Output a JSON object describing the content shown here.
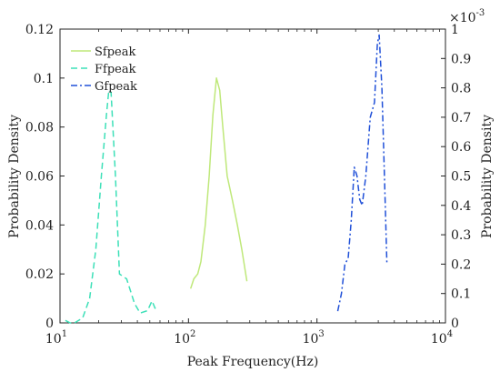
{
  "chart_data": {
    "type": "line",
    "title": "",
    "xlabel": "Peak Frequency(Hz)",
    "ylabel_left": "Probability Density",
    "ylabel_right": "Probability Density",
    "xscale": "log",
    "xlim": [
      10,
      10000
    ],
    "ylim_left": [
      0,
      0.12
    ],
    "ylim_right": [
      0,
      0.001
    ],
    "right_axis_multiplier": "×10",
    "right_axis_exponent": "-3",
    "x_ticks": [
      {
        "value": 10,
        "base": "10",
        "exp": "1"
      },
      {
        "value": 100,
        "base": "10",
        "exp": "2"
      },
      {
        "value": 1000,
        "base": "10",
        "exp": "3"
      },
      {
        "value": 10000,
        "base": "10",
        "exp": "4"
      }
    ],
    "y_ticks_left": [
      {
        "value": 0,
        "label": "0"
      },
      {
        "value": 0.02,
        "label": "0.02"
      },
      {
        "value": 0.04,
        "label": "0.04"
      },
      {
        "value": 0.06,
        "label": "0.06"
      },
      {
        "value": 0.08,
        "label": "0.08"
      },
      {
        "value": 0.1,
        "label": "0.1"
      },
      {
        "value": 0.12,
        "label": "0.12"
      }
    ],
    "y_ticks_right": [
      {
        "value": 0,
        "label": "0"
      },
      {
        "value": 0.0001,
        "label": "0.1"
      },
      {
        "value": 0.0002,
        "label": "0.2"
      },
      {
        "value": 0.0003,
        "label": "0.3"
      },
      {
        "value": 0.0004,
        "label": "0.4"
      },
      {
        "value": 0.0005,
        "label": "0.5"
      },
      {
        "value": 0.0006,
        "label": "0.6"
      },
      {
        "value": 0.0007,
        "label": "0.7"
      },
      {
        "value": 0.0008,
        "label": "0.8"
      },
      {
        "value": 0.0009,
        "label": "0.9"
      },
      {
        "value": 0.001,
        "label": "1"
      }
    ],
    "legend_position": "top-left",
    "series": [
      {
        "name": "Sfpeak",
        "axis": "left",
        "color": "#bfe87a",
        "dash": "solid",
        "points": [
          [
            104,
            0.014
          ],
          [
            110,
            0.018
          ],
          [
            118,
            0.02
          ],
          [
            125,
            0.025
          ],
          [
            135,
            0.04
          ],
          [
            145,
            0.06
          ],
          [
            155,
            0.085
          ],
          [
            165,
            0.1
          ],
          [
            175,
            0.095
          ],
          [
            185,
            0.08
          ],
          [
            200,
            0.06
          ],
          [
            220,
            0.05
          ],
          [
            240,
            0.04
          ],
          [
            260,
            0.03
          ],
          [
            285,
            0.017
          ]
        ]
      },
      {
        "name": "Ffpeak",
        "axis": "left",
        "color": "#3de0b8",
        "dash": "dashed",
        "points": [
          [
            11,
            0.001
          ],
          [
            12,
            0.0
          ],
          [
            13,
            0.0
          ],
          [
            15,
            0.002
          ],
          [
            17,
            0.01
          ],
          [
            19,
            0.03
          ],
          [
            21,
            0.06
          ],
          [
            23,
            0.085
          ],
          [
            24,
            0.095
          ],
          [
            25,
            0.094
          ],
          [
            27,
            0.06
          ],
          [
            29,
            0.02
          ],
          [
            33,
            0.018
          ],
          [
            38,
            0.008
          ],
          [
            42,
            0.004
          ],
          [
            48,
            0.005
          ],
          [
            52,
            0.009
          ],
          [
            55,
            0.006
          ],
          [
            58,
            0.005
          ]
        ]
      },
      {
        "name": "Gfpeak",
        "axis": "right",
        "color": "#2050d8",
        "dash": "dashdot",
        "points": [
          [
            1450,
            4e-05
          ],
          [
            1550,
            0.0001
          ],
          [
            1650,
            0.0002
          ],
          [
            1750,
            0.00022
          ],
          [
            1850,
            0.00035
          ],
          [
            1950,
            0.00053
          ],
          [
            2050,
            0.0005
          ],
          [
            2150,
            0.00042
          ],
          [
            2250,
            0.0004
          ],
          [
            2400,
            0.0005
          ],
          [
            2600,
            0.0007
          ],
          [
            2800,
            0.00075
          ],
          [
            2950,
            0.00095
          ],
          [
            3050,
            0.00098
          ],
          [
            3200,
            0.0008
          ],
          [
            3400,
            0.0004
          ],
          [
            3500,
            0.0002
          ]
        ]
      }
    ]
  }
}
